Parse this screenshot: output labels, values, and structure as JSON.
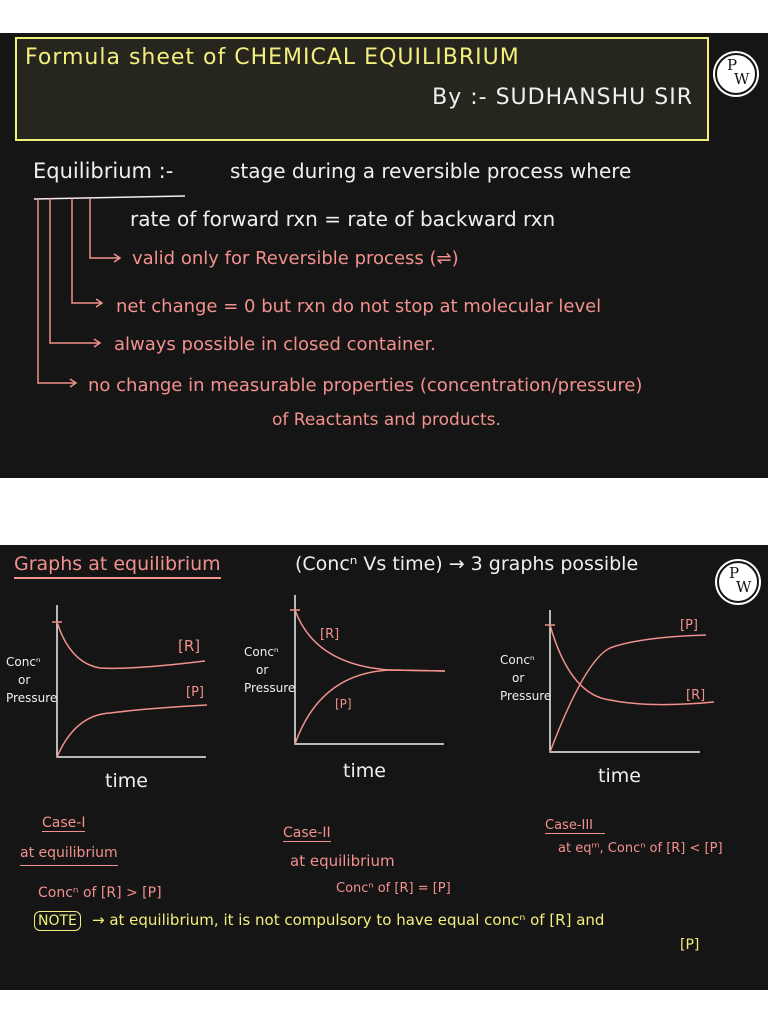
{
  "slide1": {
    "title": "Formula sheet of CHEMICAL EQUILIBRIUM",
    "byline": "By :- SUDHANSHU SIR",
    "logo": "PW",
    "definition_term": "Equilibrium :-",
    "definition_text": "stage during a reversible process where",
    "definition_line2": "rate of forward rxn = rate of backward rxn",
    "points": [
      "valid only for Reversible process (⇌)",
      "net change = 0  but rxn do not stop at molecular level",
      "always possible in closed container.",
      "no change in measurable properties (concentration/pressure)",
      "of Reactants and products."
    ]
  },
  "slide2": {
    "title": "Graphs at equilibrium",
    "title_rest": "(Concⁿ Vs time) → 3 graphs possible",
    "logo": "PW",
    "graphs": [
      {
        "ylabel": [
          "Concⁿ",
          "or",
          "Pressure"
        ],
        "xlabel": "time",
        "r_label": "[R]",
        "p_label": "[P]",
        "case": "Case-I",
        "case_line1": "at equilibrium",
        "case_line2": "Concⁿ of [R] > [P]"
      },
      {
        "ylabel": [
          "Concⁿ",
          "or",
          "Pressure"
        ],
        "xlabel": "time",
        "r_label": "[R]",
        "p_label": "[P]",
        "case": "Case-II",
        "case_line1": "at equilibrium",
        "case_line2": "Concⁿ of [R] = [P]"
      },
      {
        "ylabel": [
          "Concⁿ",
          "or",
          "Pressure"
        ],
        "xlabel": "time",
        "r_label": "[R]",
        "p_label": "[P]",
        "case": "Case-III",
        "case_line1": "at eqᵐ, Concⁿ of [R] < [P]",
        "case_line2": ""
      }
    ],
    "note_label": "NOTE",
    "note_text": "→ at equilibrium, it is not compulsory to have equal concⁿ of [R] and",
    "note_text2": "[P]"
  },
  "colors": {
    "yellow": "#f3ef7c",
    "pink": "#f2918d",
    "white": "#efefef",
    "board": "#151515"
  }
}
